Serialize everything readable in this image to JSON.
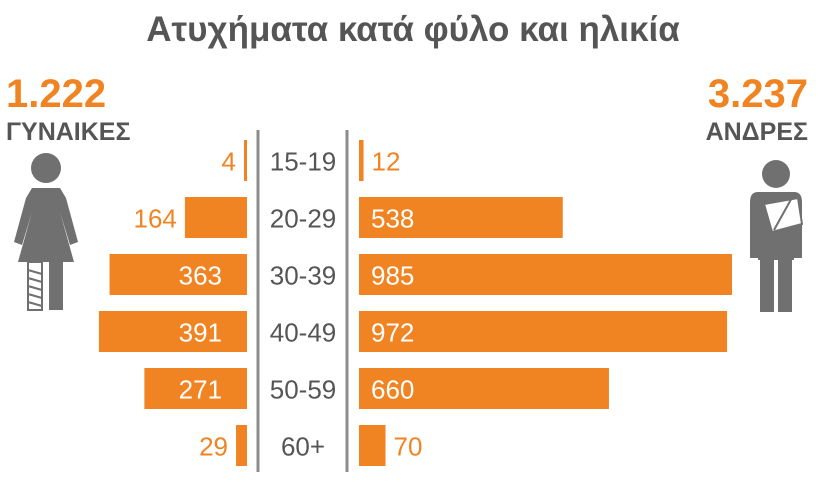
{
  "title": "Ατυχήματα κατά φύλο και ηλικία",
  "women": {
    "total": "1.222",
    "label": "ΓΥΝΑΙΚΕΣ"
  },
  "men": {
    "total": "3.237",
    "label": "ΑΝΔΡΕΣ"
  },
  "colors": {
    "bar": "#f08422",
    "text": "#555555",
    "divider": "#8c8c8c"
  },
  "icons": {
    "left": "female-figure-bandaged-leg-icon",
    "right": "male-figure-arm-sling-icon"
  },
  "chart_data": {
    "type": "bar",
    "orientation": "horizontal-population-pyramid",
    "categories": [
      "15-19",
      "20-29",
      "30-39",
      "40-49",
      "50-59",
      "60+"
    ],
    "series": [
      {
        "name": "ΓΥΝΑΙΚΕΣ",
        "values": [
          4,
          164,
          363,
          391,
          271,
          29
        ]
      },
      {
        "name": "ΑΝΔΡΕΣ",
        "values": [
          12,
          538,
          985,
          972,
          660,
          70
        ]
      }
    ],
    "title": "Ατυχήματα κατά φύλο και ηλικία",
    "xlabel": "",
    "ylabel": "",
    "grid": false
  }
}
